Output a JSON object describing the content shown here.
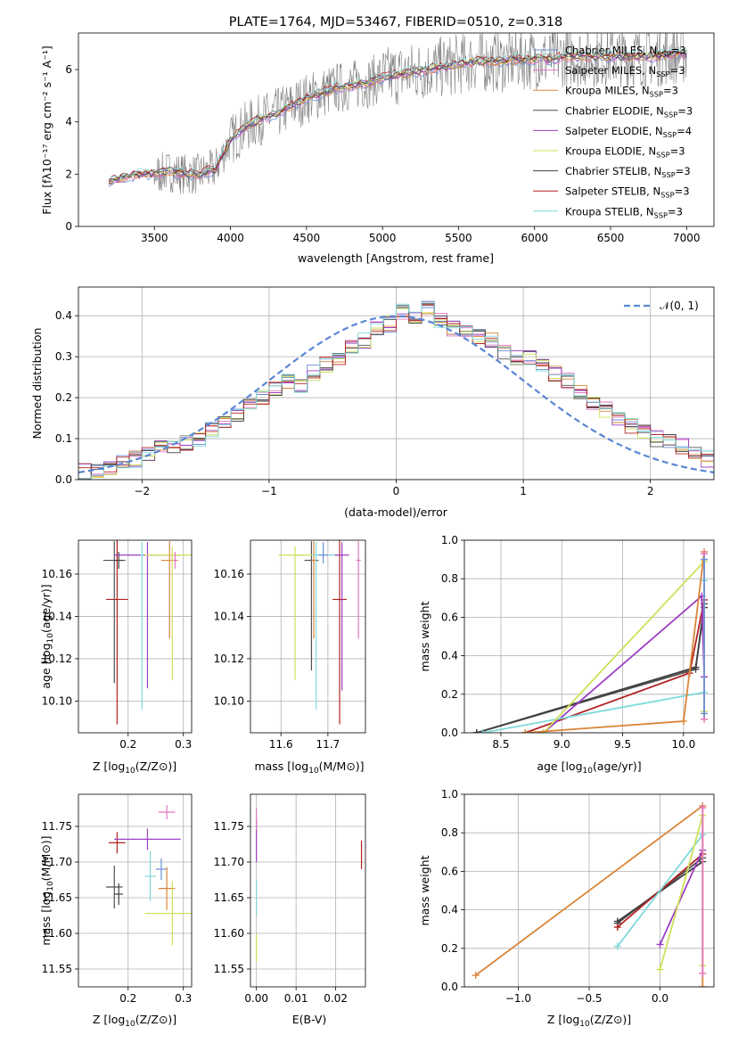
{
  "chart_data": [
    {
      "type": "line",
      "title": "PLATE=1764, MJD=53467, FIBERID=0510, z=0.318",
      "xlabel": "wavelength [Angstrom, rest frame]",
      "ylabel": "Flux [fλ10⁻¹⁷ erg cm⁻² s⁻¹ A⁻¹]",
      "xlim": [
        3000,
        7180
      ],
      "ylim": [
        0,
        7.4
      ],
      "xticks": [
        "3500",
        "4000",
        "4500",
        "5000",
        "5500",
        "6000",
        "6500",
        "7000"
      ],
      "yticks": [
        "0",
        "2",
        "4",
        "6"
      ],
      "legend_position": "top-right",
      "data_series": {
        "name": "observed spectrum",
        "color": "#808080"
      },
      "continuum": {
        "x": [
          3200,
          3300,
          3400,
          3500,
          3600,
          3700,
          3800,
          3900,
          4000,
          4100,
          4200,
          4300,
          4400,
          4500,
          4600,
          4700,
          4800,
          4900,
          5000,
          5100,
          5200,
          5300,
          5400,
          5500,
          5600,
          5700,
          5800,
          5900,
          6000,
          6100,
          6200,
          6300,
          6400,
          6500,
          6600,
          6700,
          6800,
          6900,
          7000
        ],
        "y": [
          1.7,
          1.9,
          2.0,
          2.0,
          2.1,
          2.0,
          2.0,
          2.2,
          3.3,
          3.8,
          4.1,
          4.3,
          4.6,
          4.9,
          5.1,
          5.3,
          5.4,
          5.5,
          5.7,
          5.8,
          5.9,
          6.0,
          6.1,
          6.2,
          6.3,
          6.3,
          6.3,
          6.4,
          6.4,
          6.4,
          6.5,
          6.5,
          6.5,
          6.5,
          6.5,
          6.5,
          6.5,
          6.6,
          6.6
        ]
      },
      "series": [
        {
          "name": "Chabrier MILES, N_SSP=3",
          "label_main": "Chabrier MILES, N",
          "label_sub": "SSP",
          "label_end": "=3",
          "color": "#6a8fd6"
        },
        {
          "name": "Salpeter MILES, N_SSP=3",
          "label_main": "Salpeter MILES, N",
          "label_sub": "SSP",
          "label_end": "=3",
          "color": "#e377c2"
        },
        {
          "name": "Kroupa MILES, N_SSP=3",
          "label_main": "Kroupa MILES, N",
          "label_sub": "SSP",
          "label_end": "=3",
          "color": "#d9863a"
        },
        {
          "name": "Chabrier ELODIE, N_SSP=3",
          "label_main": "Chabrier ELODIE, N",
          "label_sub": "SSP",
          "label_end": "=3",
          "color": "#505050"
        },
        {
          "name": "Salpeter ELODIE, N_SSP=4",
          "label_main": "Salpeter ELODIE, N",
          "label_sub": "SSP",
          "label_end": "=4",
          "color": "#9c3fc4"
        },
        {
          "name": "Kroupa ELODIE, N_SSP=3",
          "label_main": "Kroupa ELODIE, N",
          "label_sub": "SSP",
          "label_end": "=3",
          "color": "#cfe05a"
        },
        {
          "name": "Chabrier STELIB, N_SSP=3",
          "label_main": "Chabrier STELIB, N",
          "label_sub": "SSP",
          "label_end": "=3",
          "color": "#404040"
        },
        {
          "name": "Salpeter STELIB, N_SSP=3",
          "label_main": "Salpeter STELIB, N",
          "label_sub": "SSP",
          "label_end": "=3",
          "color": "#b22222"
        },
        {
          "name": "Kroupa STELIB, N_SSP=3",
          "label_main": "Kroupa STELIB, N",
          "label_sub": "SSP",
          "label_end": "=3",
          "color": "#7fd9d9"
        }
      ]
    },
    {
      "type": "line",
      "xlabel": "(data-model)/error",
      "ylabel": "Normed distribution",
      "xlim": [
        -2.5,
        2.5
      ],
      "ylim": [
        0,
        0.47
      ],
      "xticks": [
        "−2",
        "−1",
        "0",
        "1",
        "2"
      ],
      "yticks": [
        "0.0",
        "0.1",
        "0.2",
        "0.3",
        "0.4"
      ],
      "grid": true,
      "legend_position": "top-right",
      "gaussian": {
        "name": "N(0,1)",
        "label": "𝒩(0, 1)",
        "color": "#5a86d6",
        "mean": 0,
        "sigma": 1
      },
      "histogram": {
        "bin_edges_start": -2.5,
        "bin_width": 0.1,
        "values": [
          0.02,
          0.025,
          0.03,
          0.04,
          0.05,
          0.06,
          0.075,
          0.08,
          0.09,
          0.1,
          0.12,
          0.14,
          0.16,
          0.19,
          0.2,
          0.22,
          0.24,
          0.23,
          0.26,
          0.28,
          0.3,
          0.32,
          0.34,
          0.37,
          0.38,
          0.41,
          0.4,
          0.42,
          0.39,
          0.37,
          0.36,
          0.35,
          0.34,
          0.31,
          0.3,
          0.3,
          0.28,
          0.26,
          0.24,
          0.21,
          0.19,
          0.17,
          0.15,
          0.13,
          0.12,
          0.1,
          0.09,
          0.08,
          0.07,
          0.05
        ]
      }
    },
    {
      "type": "scatter",
      "xlabel_main": "Z [log",
      "xlabel_sub": "10",
      "xlabel_end": "(Z/Z⊙)]",
      "ylabel_main": "age  [log",
      "ylabel_sub": "10",
      "ylabel_end": "(age/yr)]",
      "xlim": [
        0.11,
        0.315
      ],
      "ylim": [
        10.085,
        10.176
      ],
      "xticks": [
        "0.2",
        "0.3"
      ],
      "yticks": [
        "10.10",
        "10.12",
        "10.14",
        "10.16"
      ],
      "grid": true,
      "points": [
        {
          "x": 0.175,
          "y": 10.1665,
          "xerr": 0.04,
          "yerr_lo": 0.058,
          "yerr_hi": 0.009,
          "color": "#505050"
        },
        {
          "x": 0.183,
          "y": 10.1665,
          "xerr": 0.015,
          "yerr_lo": 0.004,
          "yerr_hi": 0.004,
          "color": "#404040"
        },
        {
          "x": 0.18,
          "y": 10.148,
          "xerr": 0.04,
          "yerr_lo": 0.059,
          "yerr_hi": 0.028,
          "color": "#b22222"
        },
        {
          "x": 0.235,
          "y": 10.169,
          "xerr": 0.12,
          "yerr_lo": 0.063,
          "yerr_hi": 0.006,
          "color": "#9c3fc4"
        },
        {
          "x": 0.225,
          "y": 10.169,
          "xerr": 0.005,
          "yerr_lo": 0.073,
          "yerr_hi": 0.006,
          "color": "#7fd9d9"
        },
        {
          "x": 0.275,
          "y": 10.1665,
          "xerr": 0.03,
          "yerr_lo": 0.037,
          "yerr_hi": 0.009,
          "color": "#d9863a"
        },
        {
          "x": 0.28,
          "y": 10.169,
          "xerr": 0.1,
          "yerr_lo": 0.059,
          "yerr_hi": 0.004,
          "color": "#cfe05a"
        },
        {
          "x": 0.285,
          "y": 10.1665,
          "xerr": 0.005,
          "yerr_lo": 0.004,
          "yerr_hi": 0.004,
          "color": "#e377c2"
        }
      ]
    },
    {
      "type": "scatter",
      "xlabel_main": "mass [log",
      "xlabel_sub": "10",
      "xlabel_end": "(M/M⊙)]",
      "xlim": [
        11.535,
        11.78
      ],
      "ylim": [
        10.085,
        10.176
      ],
      "xticks": [
        "11.6",
        "11.7"
      ],
      "yticks": [
        "10.10",
        "10.12",
        "10.14",
        "10.16"
      ],
      "grid": true,
      "points": [
        {
          "x": 11.665,
          "y": 10.1665,
          "xerr": 0.03,
          "yerr_lo": 0.052,
          "yerr_hi": 0.009,
          "color": "#505050"
        },
        {
          "x": 11.67,
          "y": 10.1665,
          "xerr": 0.01,
          "yerr_lo": 0.037,
          "yerr_hi": 0.009,
          "color": "#d9863a"
        },
        {
          "x": 11.675,
          "y": 10.169,
          "xerr": 0.1,
          "yerr_lo": 0.073,
          "yerr_hi": 0.006,
          "color": "#7fd9d9"
        },
        {
          "x": 11.725,
          "y": 10.148,
          "xerr": 0.03,
          "yerr_lo": 0.059,
          "yerr_hi": 0.028,
          "color": "#b22222"
        },
        {
          "x": 11.73,
          "y": 10.169,
          "xerr": 0.03,
          "yerr_lo": 0.064,
          "yerr_hi": 0.006,
          "color": "#9c3fc4"
        },
        {
          "x": 11.765,
          "y": 10.1665,
          "xerr": 0.01,
          "yerr_lo": 0.037,
          "yerr_hi": 0.009,
          "color": "#e377c2"
        },
        {
          "x": 11.63,
          "y": 10.169,
          "xerr": 0.07,
          "yerr_lo": 0.059,
          "yerr_hi": 0.004,
          "color": "#cfe05a"
        },
        {
          "x": 11.69,
          "y": 10.169,
          "xerr": 0.02,
          "yerr_lo": 0.004,
          "yerr_hi": 0.006,
          "color": "#6a8fd6"
        }
      ]
    },
    {
      "type": "line",
      "xlabel_main": "age  [log",
      "xlabel_sub": "10",
      "xlabel_end": "(age/yr)]",
      "ylabel": "mass weight",
      "xlim": [
        8.2,
        10.25
      ],
      "ylim": [
        0,
        1.0
      ],
      "xticks": [
        "8.5",
        "9.0",
        "9.5",
        "10.0"
      ],
      "yticks": [
        "0.0",
        "0.2",
        "0.4",
        "0.6",
        "0.8",
        "1.0"
      ],
      "grid": true,
      "series": [
        {
          "color": "#505050",
          "x": [
            8.3,
            10.1,
            10.17
          ],
          "y": [
            0.0,
            0.33,
            0.67
          ]
        },
        {
          "color": "#404040",
          "x": [
            8.3,
            10.1,
            10.17
          ],
          "y": [
            0.0,
            0.34,
            0.65
          ]
        },
        {
          "color": "#b22222",
          "x": [
            8.7,
            10.05,
            10.17
          ],
          "y": [
            0.0,
            0.31,
            0.69
          ]
        },
        {
          "color": "#9c3fc4",
          "x": [
            8.85,
            10.15,
            10.17
          ],
          "y": [
            0.0,
            0.71,
            0.29
          ]
        },
        {
          "color": "#7fd9d9",
          "x": [
            8.35,
            10.17,
            10.17
          ],
          "y": [
            0.0,
            0.21,
            0.79
          ]
        },
        {
          "color": "#cfe05a",
          "x": [
            8.85,
            10.17,
            10.17
          ],
          "y": [
            0.0,
            0.89,
            0.11
          ]
        },
        {
          "color": "#d9863a",
          "x": [
            8.7,
            10.0,
            10.17
          ],
          "y": [
            0.0,
            0.06,
            0.94
          ]
        },
        {
          "color": "#e377c2",
          "x": [
            10.17,
            10.17
          ],
          "y": [
            0.07,
            0.93
          ]
        },
        {
          "color": "#6a8fd6",
          "x": [
            10.17,
            10.17
          ],
          "y": [
            0.1,
            0.9
          ]
        }
      ]
    },
    {
      "type": "scatter",
      "xlabel_main": "Z [log",
      "xlabel_sub": "10",
      "xlabel_end": "(Z/Z⊙)]",
      "ylabel_main": "mass [log",
      "ylabel_sub": "10",
      "ylabel_end": "(M/M⊙)]",
      "xlim": [
        0.11,
        0.315
      ],
      "ylim": [
        11.525,
        11.795
      ],
      "xticks": [
        "0.2",
        "0.3"
      ],
      "yticks": [
        "11.55",
        "11.60",
        "11.65",
        "11.70",
        "11.75"
      ],
      "grid": true,
      "points": [
        {
          "x": 0.175,
          "y": 11.665,
          "xerr": 0.03,
          "yerr": 0.06,
          "color": "#505050"
        },
        {
          "x": 0.183,
          "y": 11.655,
          "xerr": 0.015,
          "yerr": 0.03,
          "color": "#404040"
        },
        {
          "x": 0.18,
          "y": 11.727,
          "xerr": 0.03,
          "yerr": 0.03,
          "color": "#b22222"
        },
        {
          "x": 0.235,
          "y": 11.732,
          "xerr": 0.12,
          "yerr": 0.03,
          "color": "#9c3fc4"
        },
        {
          "x": 0.27,
          "y": 11.77,
          "xerr": 0.03,
          "yerr": 0.02,
          "color": "#e377c2"
        },
        {
          "x": 0.26,
          "y": 11.69,
          "xerr": 0.02,
          "yerr": 0.03,
          "color": "#6a8fd6"
        },
        {
          "x": 0.24,
          "y": 11.68,
          "xerr": 0.02,
          "yerr": 0.07,
          "color": "#7fd9d9"
        },
        {
          "x": 0.27,
          "y": 11.663,
          "xerr": 0.03,
          "yerr": 0.06,
          "color": "#d9863a"
        },
        {
          "x": 0.28,
          "y": 11.628,
          "xerr": 0.1,
          "yerr": 0.09,
          "color": "#cfe05a"
        }
      ]
    },
    {
      "type": "scatter",
      "xlabel": "E(B-V)",
      "xlim": [
        -0.0015,
        0.0275
      ],
      "ylim": [
        11.525,
        11.795
      ],
      "xticks": [
        "0.00",
        "0.01",
        "0.02"
      ],
      "yticks": [
        "11.55",
        "11.60",
        "11.65",
        "11.70",
        "11.75"
      ],
      "grid": true,
      "points": [
        {
          "x": 0.0,
          "y": 11.73,
          "yerr": 0.06,
          "color": "#9c3fc4"
        },
        {
          "x": 0.0,
          "y": 11.65,
          "yerr": 0.05,
          "color": "#7fd9d9"
        },
        {
          "x": 0.0,
          "y": 11.58,
          "yerr": 0.04,
          "color": "#cfe05a"
        },
        {
          "x": 0.0,
          "y": 11.76,
          "yerr": 0.03,
          "color": "#e377c2"
        },
        {
          "x": 0.0265,
          "y": 11.71,
          "yerr": 0.04,
          "color": "#b22222"
        }
      ]
    },
    {
      "type": "line",
      "xlabel_main": "Z [log",
      "xlabel_sub": "10",
      "xlabel_end": "(Z/Z⊙)]",
      "ylabel": "mass weight",
      "xlim": [
        -1.38,
        0.38
      ],
      "ylim": [
        0,
        1.0
      ],
      "xticks": [
        "−1.0",
        "−0.5",
        "0.0"
      ],
      "yticks": [
        "0.0",
        "0.2",
        "0.4",
        "0.6",
        "0.8",
        "1.0"
      ],
      "grid": true,
      "series": [
        {
          "color": "#505050",
          "x": [
            -0.3,
            0.3
          ],
          "y": [
            0.33,
            0.67
          ]
        },
        {
          "color": "#404040",
          "x": [
            -0.3,
            0.3
          ],
          "y": [
            0.34,
            0.65
          ]
        },
        {
          "color": "#b22222",
          "x": [
            -0.3,
            0.3
          ],
          "y": [
            0.31,
            0.69
          ]
        },
        {
          "color": "#9c3fc4",
          "x": [
            0.0,
            0.3
          ],
          "y": [
            0.22,
            0.71
          ]
        },
        {
          "color": "#7fd9d9",
          "x": [
            -0.3,
            0.3
          ],
          "y": [
            0.21,
            0.79
          ]
        },
        {
          "color": "#cfe05a",
          "x": [
            0.0,
            0.3,
            0.3
          ],
          "y": [
            0.09,
            0.89,
            0.11
          ]
        },
        {
          "color": "#d9863a",
          "x": [
            -1.3,
            0.3,
            0.3
          ],
          "y": [
            0.06,
            0.94,
            0.0
          ]
        },
        {
          "color": "#e377c2",
          "x": [
            0.3,
            0.3
          ],
          "y": [
            0.07,
            0.93
          ]
        }
      ]
    }
  ]
}
